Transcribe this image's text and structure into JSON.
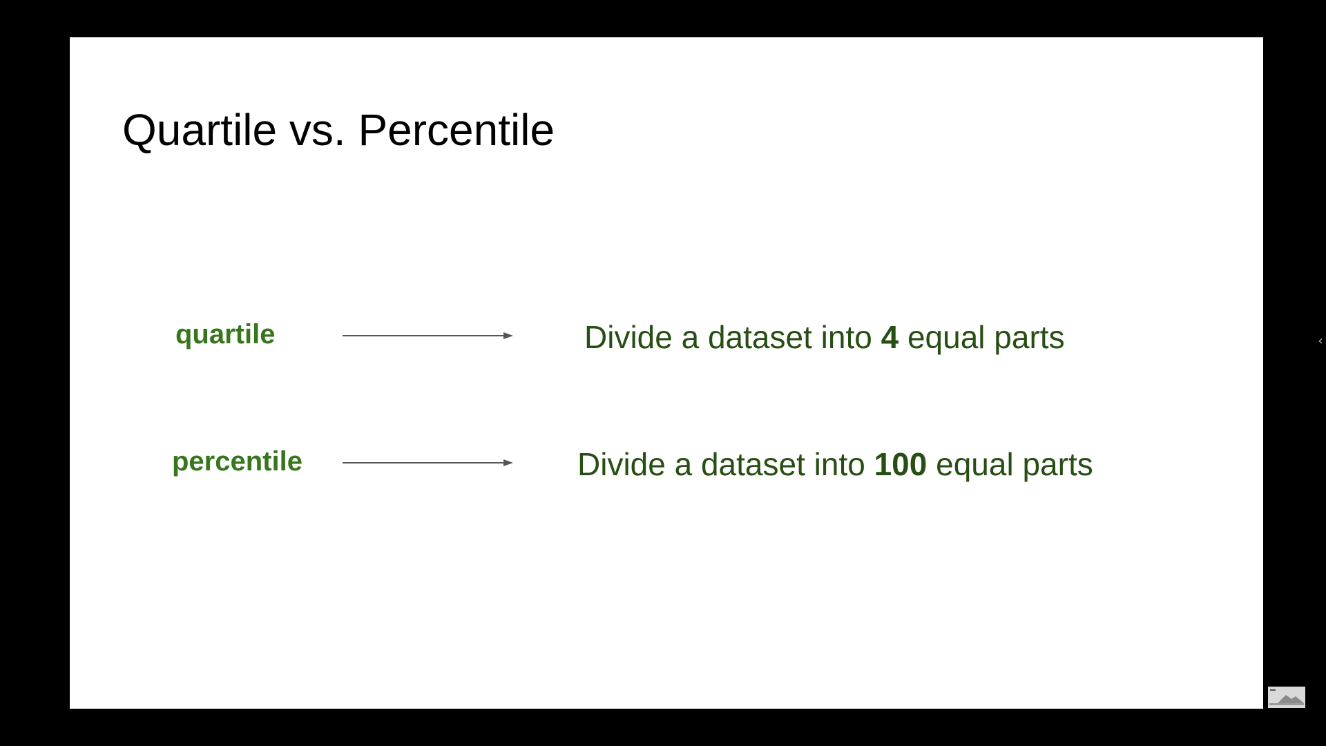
{
  "slide": {
    "title": "Quartile vs. Percentile",
    "rows": [
      {
        "term": "quartile",
        "desc_prefix": "Divide a dataset into ",
        "desc_number": "4",
        "desc_suffix": " equal parts"
      },
      {
        "term": "percentile",
        "desc_prefix": "Divide a dataset into ",
        "desc_number": "100",
        "desc_suffix": " equal parts"
      }
    ]
  },
  "viewer": {
    "collapse_icon": "chevron-left-icon",
    "collapse_glyph": "‹"
  },
  "colors": {
    "background": "#000000",
    "slide": "#ffffff",
    "title": "#000000",
    "term": "#38761d",
    "description": "#274e13",
    "arrow": "#555555"
  }
}
